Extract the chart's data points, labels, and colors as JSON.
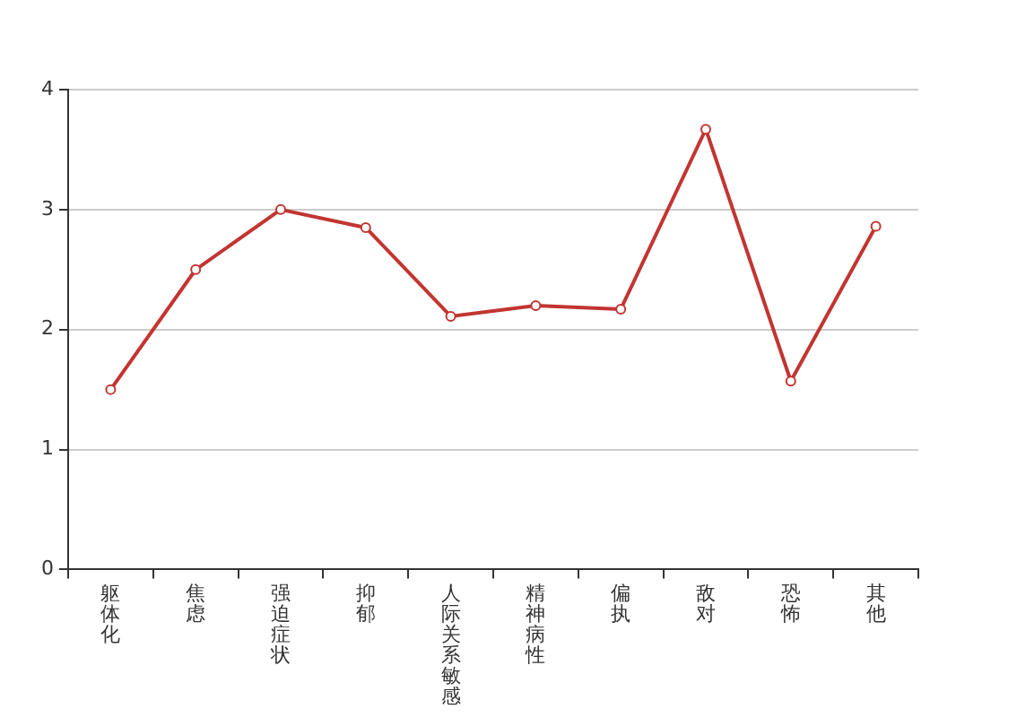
{
  "chart_data": {
    "type": "line",
    "categories": [
      "躯体化",
      "焦虑",
      "强迫症状",
      "抑郁",
      "人际关系敏感",
      "精神病性",
      "偏执",
      "敌对",
      "恐怖",
      "其他"
    ],
    "series": [
      {
        "color": "#c23531",
        "values": [
          1.5,
          2.5,
          3.0,
          2.85,
          2.11,
          2.2,
          2.17,
          3.67,
          1.57,
          2.86
        ]
      }
    ],
    "ylim": [
      0,
      4
    ],
    "yticks": [
      0,
      1,
      2,
      3,
      4
    ],
    "grid": "y",
    "legend": false,
    "marker": "circle",
    "line_style": "solid"
  }
}
